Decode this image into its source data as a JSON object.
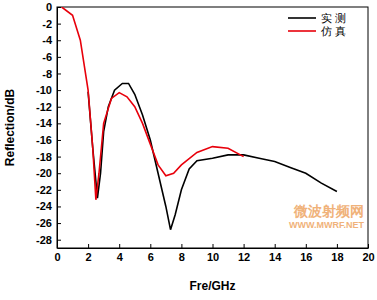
{
  "chart_data": {
    "type": "line",
    "x_label": "Fre/GHz",
    "y_label": "Reflection/dB",
    "legend": "top-right",
    "annotations": [
      "微波射频网",
      "WWW.MWRF.NET"
    ],
    "xlim": [
      0,
      20
    ],
    "xticks": [
      0,
      2,
      4,
      6,
      8,
      10,
      12,
      14,
      16,
      18,
      20
    ],
    "ylim": [
      -29,
      0
    ],
    "yticks": [
      0,
      -2,
      -4,
      -6,
      -8,
      -10,
      -12,
      -14,
      -16,
      -18,
      -20,
      -22,
      -24,
      -26,
      -28
    ],
    "series": [
      {
        "name": "实 测",
        "color": "#000000",
        "x": [
          2,
          2.3,
          2.6,
          2.8,
          3,
          3.3,
          3.7,
          4.2,
          4.6,
          5,
          5.5,
          6,
          6.5,
          7,
          7.3,
          7.6,
          8,
          8.5,
          9,
          10,
          11,
          12,
          13,
          14,
          15,
          16,
          17,
          18
        ],
        "values": [
          -10.2,
          -17,
          -23,
          -20,
          -15,
          -12,
          -10,
          -9.2,
          -9.2,
          -10.5,
          -13,
          -16,
          -20,
          -24,
          -26.8,
          -25,
          -22,
          -19.5,
          -18.5,
          -18.2,
          -17.8,
          -17.8,
          -18.2,
          -18.6,
          -19.3,
          -20,
          -21.2,
          -22.2
        ]
      },
      {
        "name": "仿 真",
        "color": "#e8000b",
        "x": [
          0.3,
          1,
          1.5,
          2,
          2.3,
          2.5,
          2.7,
          3,
          3.5,
          4,
          4.5,
          5,
          5.5,
          6,
          6.5,
          7,
          7.5,
          8,
          9,
          10,
          11,
          12
        ],
        "values": [
          0,
          -1,
          -4,
          -10,
          -17,
          -23.2,
          -20,
          -14,
          -11,
          -10.3,
          -10.8,
          -12,
          -14,
          -16.5,
          -19,
          -20.3,
          -20,
          -19,
          -17.5,
          -16.8,
          -17,
          -18
        ]
      }
    ]
  }
}
